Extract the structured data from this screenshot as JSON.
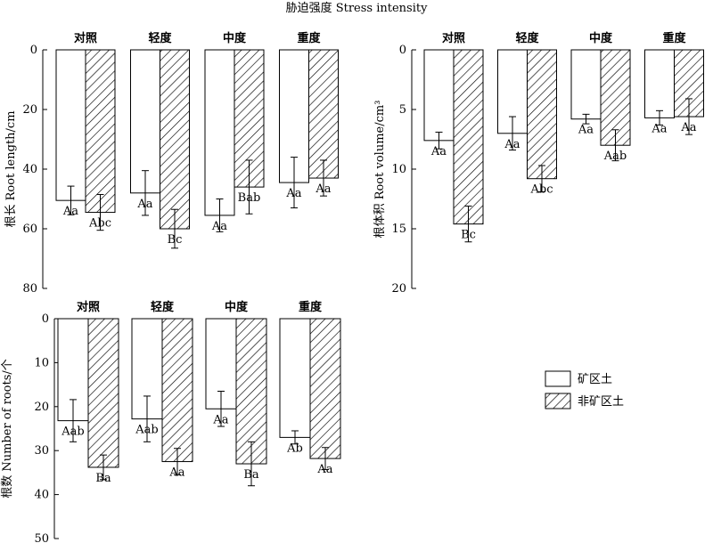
{
  "figure_title": "胁迫强度 Stress intensity",
  "legend": {
    "mine_label": "矿区土",
    "nonmine_label": "非矿区土"
  },
  "chart_data": [
    {
      "type": "bar",
      "ylabel": "根长 Root length/cm",
      "ylim": [
        0,
        80
      ],
      "y_inverted": true,
      "yticks": [
        "0",
        "20",
        "40",
        "60",
        "80"
      ],
      "categories": [
        "对照",
        "轻度",
        "中度",
        "重度"
      ],
      "series": [
        {
          "name": "矿区土",
          "values": [
            50.5,
            48,
            55.5,
            44.5
          ],
          "errors": [
            4.8,
            7.5,
            5.5,
            8.5
          ],
          "labels": [
            "Aa",
            "Aa",
            "Aa",
            "Aa"
          ]
        },
        {
          "name": "非矿区土",
          "values": [
            54.5,
            60,
            46,
            43
          ],
          "errors": [
            6,
            6.5,
            9,
            6
          ],
          "labels": [
            "Abc",
            "Bc",
            "Bab",
            "Aa"
          ]
        }
      ]
    },
    {
      "type": "bar",
      "ylabel": "根体积 Root volume/cm³",
      "ylim": [
        0,
        20
      ],
      "y_inverted": true,
      "yticks": [
        "0",
        "5",
        "10",
        "15",
        "20"
      ],
      "categories": [
        "对照",
        "轻度",
        "中度",
        "重度"
      ],
      "series": [
        {
          "name": "矿区土",
          "values": [
            7.6,
            7,
            5.8,
            5.7
          ],
          "errors": [
            0.7,
            1.4,
            0.4,
            0.6
          ],
          "labels": [
            "Aa",
            "Aa",
            "Aa",
            "Aa"
          ]
        },
        {
          "name": "非矿区土",
          "values": [
            14.6,
            10.8,
            8,
            5.6
          ],
          "errors": [
            1.5,
            1.1,
            1.3,
            1.5
          ],
          "labels": [
            "Bc",
            "Abc",
            "Aab",
            "Aa"
          ]
        }
      ]
    },
    {
      "type": "bar",
      "ylabel": "根数 Number of roots/个",
      "ylim": [
        0,
        50
      ],
      "y_inverted": true,
      "yticks": [
        "0",
        "10",
        "20",
        "30",
        "40",
        "50"
      ],
      "categories": [
        "对照",
        "轻度",
        "中度",
        "重度"
      ],
      "series": [
        {
          "name": "矿区土",
          "values": [
            23.2,
            22.8,
            20.5,
            27
          ],
          "errors": [
            4.8,
            5.2,
            4,
            1.5
          ],
          "labels": [
            "Aab",
            "Aab",
            "Aa",
            "Ab"
          ]
        },
        {
          "name": "非矿区土",
          "values": [
            33.8,
            32.5,
            33,
            31.8
          ],
          "errors": [
            2.8,
            3,
            5,
            2.5
          ],
          "labels": [
            "Ba",
            "Aa",
            "Ba",
            "Aa"
          ]
        }
      ]
    }
  ]
}
